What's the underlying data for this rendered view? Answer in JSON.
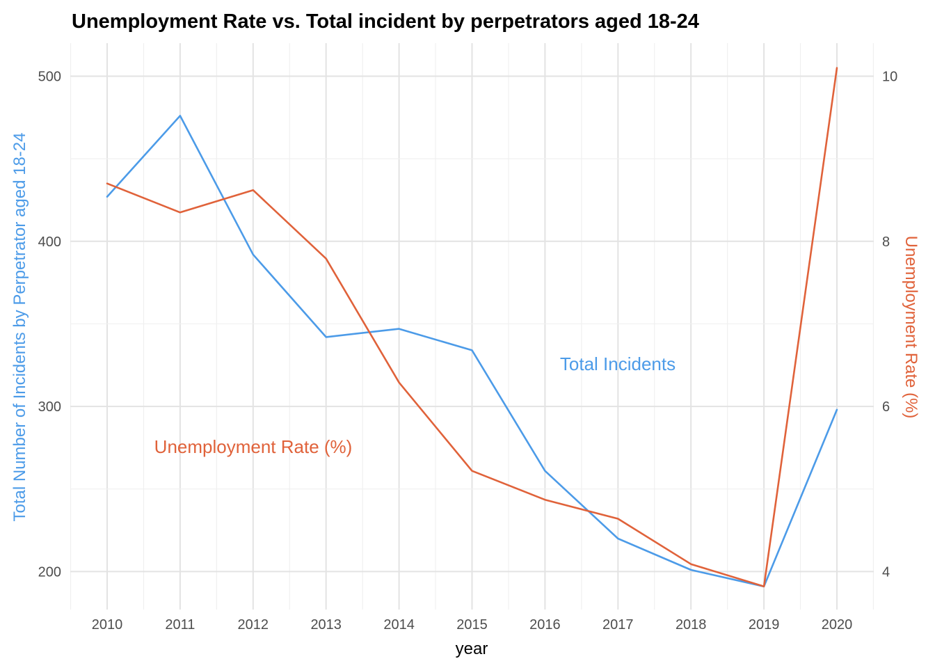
{
  "chart_data": {
    "type": "line",
    "title": "Unemployment Rate vs. Total incident by perpetrators aged 18-24",
    "xlabel": "year",
    "ylabel_left": "Total Number of Incidents by Perpetrator aged 18-24",
    "ylabel_right": "Unemployment Rate (%)",
    "x": [
      "2010",
      "2011",
      "2012",
      "2013",
      "2014",
      "2015",
      "2016",
      "2017",
      "2018",
      "2019",
      "2020"
    ],
    "y_left_ticks": [
      "200",
      "300",
      "400",
      "500"
    ],
    "y_right_ticks": [
      "4",
      "6",
      "8",
      "10"
    ],
    "y_left_range": [
      177,
      520
    ],
    "y_right_range": [
      3.54,
      10.4
    ],
    "grid": true,
    "legend": "none",
    "series": [
      {
        "name": "Total Incidents",
        "axis": "left",
        "color": "#4c9be8",
        "values": [
          427,
          476,
          392,
          342,
          347,
          334,
          261,
          220,
          201,
          191,
          298
        ]
      },
      {
        "name": "Unemployment Rate (%)",
        "axis": "right",
        "color": "#e0623a",
        "values": [
          8.7,
          8.35,
          8.62,
          7.79,
          6.29,
          5.22,
          4.87,
          4.64,
          4.09,
          3.82,
          10.1
        ]
      }
    ],
    "annotations": [
      {
        "text": "Total Incidents",
        "color": "#4c9be8"
      },
      {
        "text": "Unemployment Rate (%)",
        "color": "#e0623a"
      }
    ]
  }
}
